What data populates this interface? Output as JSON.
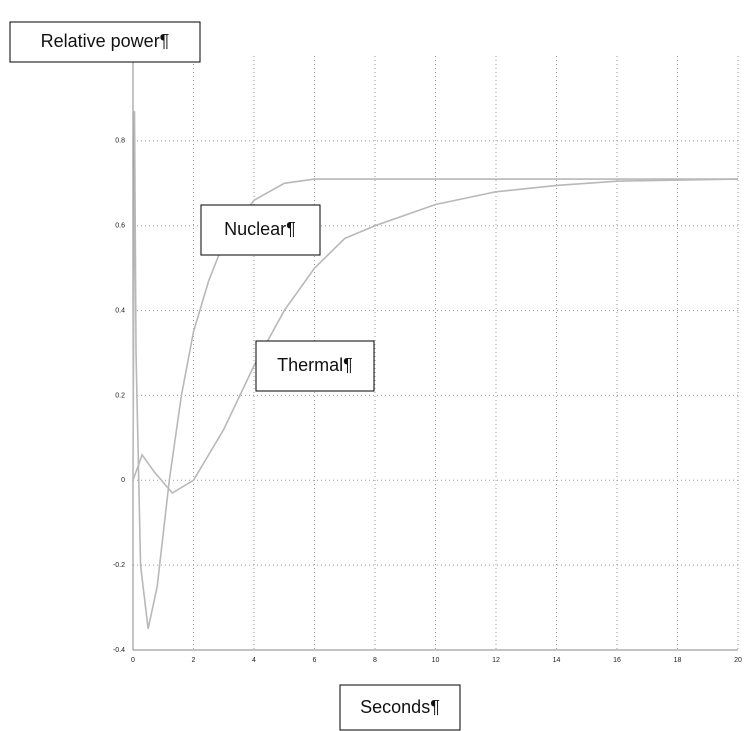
{
  "chart_data": {
    "type": "line",
    "ylabel": "Relative power¶",
    "xlabel": "Seconds¶",
    "xlim": [
      0,
      20
    ],
    "xticks": [
      0,
      2,
      4,
      6,
      8,
      10,
      12,
      14,
      16,
      18,
      20
    ],
    "ylim": [
      -0.4,
      1.0
    ],
    "yticks": [
      -0.4,
      -0.2,
      0,
      0.2,
      0.4,
      0.6,
      0.8
    ],
    "grid": true,
    "series": [
      {
        "name": "Nuclear¶",
        "color": "#b8b8b8",
        "x": [
          0,
          0.05,
          0.1,
          0.25,
          0.5,
          0.8,
          1.2,
          1.6,
          2,
          2.5,
          3,
          4,
          5,
          6,
          8,
          20
        ],
        "values": [
          0,
          0.87,
          0.3,
          -0.2,
          -0.35,
          -0.25,
          0,
          0.2,
          0.35,
          0.47,
          0.56,
          0.66,
          0.7,
          0.71,
          0.71,
          0.71
        ]
      },
      {
        "name": "Thermal¶",
        "color": "#b8b8b8",
        "x": [
          0,
          0.3,
          0.7,
          1.3,
          2,
          3,
          4,
          5,
          6,
          7,
          8,
          10,
          12,
          14,
          16,
          20
        ],
        "values": [
          0,
          0.06,
          0.02,
          -0.03,
          0,
          0.12,
          0.27,
          0.4,
          0.5,
          0.57,
          0.6,
          0.65,
          0.68,
          0.695,
          0.705,
          0.71
        ]
      }
    ]
  }
}
